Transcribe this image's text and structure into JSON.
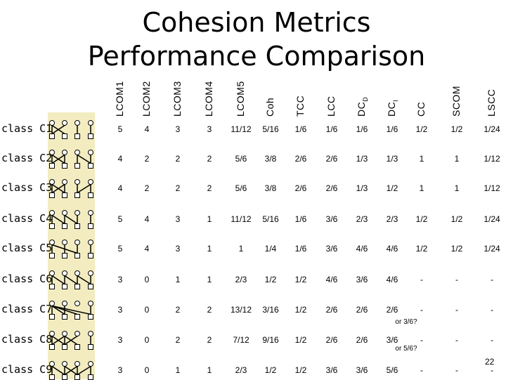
{
  "title_line1": "Cohesion Metrics",
  "title_line2": "Performance Comparison",
  "columns": [
    "LCOM1",
    "LCOM2",
    "LCOM3",
    "LCOM4",
    "LCOM5",
    "Coh",
    "TCC",
    "LCC",
    "DCD",
    "DCI",
    "CC",
    "SCOM",
    "LSCC"
  ],
  "column_subscripts": {
    "DCD": "D",
    "DCI": "I"
  },
  "rows": [
    {
      "label": "class C1",
      "values": [
        "5",
        "4",
        "3",
        "3",
        "11/12",
        "5/16",
        "1/6",
        "1/6",
        "1/6",
        "1/6",
        "1/2",
        "1/2",
        "1/24"
      ]
    },
    {
      "label": "class C2",
      "values": [
        "4",
        "2",
        "2",
        "2",
        "5/6",
        "3/8",
        "2/6",
        "2/6",
        "1/3",
        "1/3",
        "1",
        "1",
        "1/12"
      ]
    },
    {
      "label": "class C3",
      "values": [
        "4",
        "2",
        "2",
        "2",
        "5/6",
        "3/8",
        "2/6",
        "2/6",
        "1/3",
        "1/2",
        "1",
        "1",
        "1/12"
      ]
    },
    {
      "label": "class C4",
      "values": [
        "5",
        "4",
        "3",
        "1",
        "11/12",
        "5/16",
        "1/6",
        "3/6",
        "2/3",
        "2/3",
        "1/2",
        "1/2",
        "1/24"
      ]
    },
    {
      "label": "class C5",
      "values": [
        "5",
        "4",
        "3",
        "1",
        "1",
        "1/4",
        "1/6",
        "3/6",
        "4/6",
        "4/6",
        "1/2",
        "1/2",
        "1/24"
      ]
    },
    {
      "label": "class C6",
      "values": [
        "3",
        "0",
        "1",
        "1",
        "2/3",
        "1/2",
        "1/2",
        "4/6",
        "3/6",
        "4/6",
        "-",
        "-",
        "-"
      ]
    },
    {
      "label": "class C7",
      "values": [
        "3",
        "0",
        "2",
        "2",
        "13/12",
        "3/16",
        "1/2",
        "2/6",
        "2/6",
        "2/6",
        "-",
        "-",
        "-"
      ]
    },
    {
      "label": "class C8",
      "values": [
        "3",
        "0",
        "2",
        "2",
        "7/12",
        "9/16",
        "1/2",
        "2/6",
        "2/6",
        "3/6",
        "-",
        "-",
        "-"
      ]
    },
    {
      "label": "class C9",
      "values": [
        "3",
        "0",
        "1",
        "1",
        "2/3",
        "1/2",
        "1/2",
        "3/6",
        "3/6",
        "5/6",
        "-",
        "-",
        "-"
      ]
    }
  ],
  "notes": {
    "c7_dci": "or 3/6?",
    "c8_dci": "or 5/6?"
  },
  "page_number": "22",
  "colors": {
    "diagram_band": "#f2ecc0"
  }
}
